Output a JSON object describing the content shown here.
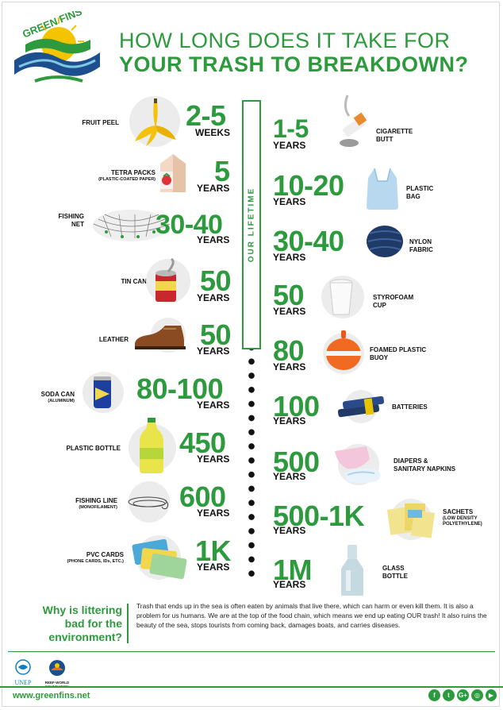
{
  "header": {
    "logo_text": "GREEN FINS",
    "title_line1": "HOW LONG DOES IT TAKE FOR",
    "title_line2": "YOUR TRASH TO BREAKDOWN?"
  },
  "timeline": {
    "lifetime_label": "OUR LIFETIME"
  },
  "left_items": [
    {
      "label": "FRUIT PEEL",
      "sub": "",
      "value": "2-5",
      "unit": "WEEKS",
      "icon": "banana-peel-icon"
    },
    {
      "label": "TETRA PACKS",
      "sub": "(PLASTIC-COATED PAPER)",
      "value": "5",
      "unit": "YEARS",
      "icon": "milk-carton-icon"
    },
    {
      "label": "FISHING",
      "label2": "NET",
      "sub": "",
      "value": "30-40",
      "unit": "YEARS",
      "icon": "fishing-net-icon"
    },
    {
      "label": "TIN CAN",
      "sub": "",
      "value": "50",
      "unit": "YEARS",
      "icon": "tin-can-icon"
    },
    {
      "label": "LEATHER",
      "sub": "",
      "value": "50",
      "unit": "YEARS",
      "icon": "leather-shoe-icon"
    },
    {
      "label": "SODA CAN",
      "sub": "(ALUMINUM)",
      "value": "80-100",
      "unit": "YEARS",
      "icon": "soda-can-icon"
    },
    {
      "label": "PLASTIC BOTTLE",
      "sub": "",
      "value": "450",
      "unit": "YEARS",
      "icon": "plastic-bottle-icon"
    },
    {
      "label": "FISHING LINE",
      "sub": "(MONOFILAMENT)",
      "value": "600",
      "unit": "YEARS",
      "icon": "fishing-line-icon"
    },
    {
      "label": "PVC CARDS",
      "sub": "(PHONE CARDS, IDs, ETC.)",
      "value": "1K",
      "unit": "YEARS",
      "icon": "pvc-cards-icon"
    }
  ],
  "right_items": [
    {
      "label": "CIGARETTE",
      "label2": "BUTT",
      "value": "1-5",
      "unit": "YEARS",
      "icon": "cigarette-butt-icon"
    },
    {
      "label": "PLASTIC",
      "label2": "BAG",
      "value": "10-20",
      "unit": "YEARS",
      "icon": "plastic-bag-icon"
    },
    {
      "label": "NYLON",
      "label2": "FABRIC",
      "value": "30-40",
      "unit": "YEARS",
      "icon": "nylon-fabric-icon"
    },
    {
      "label": "STYROFOAM",
      "label2": "CUP",
      "value": "50",
      "unit": "YEARS",
      "icon": "styrofoam-cup-icon"
    },
    {
      "label": "FOAMED PLASTIC",
      "label2": "BUOY",
      "value": "80",
      "unit": "YEARS",
      "icon": "buoy-icon"
    },
    {
      "label": "BATTERIES",
      "label2": "",
      "value": "100",
      "unit": "YEARS",
      "icon": "batteries-icon"
    },
    {
      "label": "DIAPERS &",
      "label2": "SANITARY NAPKINS",
      "value": "500",
      "unit": "YEARS",
      "icon": "diaper-icon"
    },
    {
      "label": "SACHETS",
      "label2": "(LOW DENSITY",
      "label3": "POLYETHYLENE)",
      "value": "500-1K",
      "unit": "YEARS",
      "icon": "sachets-icon"
    },
    {
      "label": "GLASS",
      "label2": "BOTTLE",
      "value": "1M",
      "unit": "YEARS",
      "icon": "glass-bottle-icon"
    }
  ],
  "why": {
    "heading_line1": "Why is littering",
    "heading_line2": "bad for the",
    "heading_line3": "environment?",
    "body": "Trash that ends up in the sea is often eaten by animals that live there, which can harm or even kill them. It is also a problem for us humans. We are at the top of the food chain, which means we end up eating OUR trash! It also ruins the beauty of the sea, stops tourists from coming back, damages boats, and carries diseases."
  },
  "footer": {
    "unep_label": "UNEP",
    "reef_label1": "REEF-WORLD",
    "reef_label2": "FOUNDATION",
    "url": "www.greenfins.net",
    "social_icons": [
      "facebook-icon",
      "twitter-icon",
      "google-plus-icon",
      "instagram-icon",
      "youtube-icon"
    ]
  },
  "colors": {
    "accent": "#2d9a3e",
    "text": "#1a1a1a",
    "dots": "#111111"
  }
}
